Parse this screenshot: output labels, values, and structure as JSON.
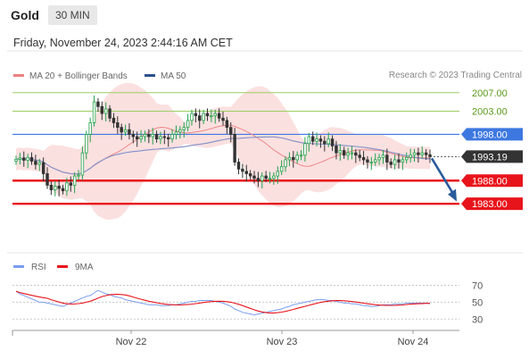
{
  "header": {
    "symbol": "Gold",
    "timeframe": "30 MIN",
    "datetime": "Friday, November 24, 2023 2:44:16 AM CET",
    "credit": "Research © 2023 Trading Central"
  },
  "colors": {
    "bollinger_fill": "#fbe0e0",
    "ma20": "#e88",
    "ma50": "#7f8fc8",
    "candle_up": "#22a24a",
    "candle_down": "#333333",
    "resistance": "#9acd62",
    "level_blue": "#3d78e0",
    "support": "#e8141b",
    "price_tag": "#333333",
    "arrow": "#2a5c9c",
    "rsi": "#7a9ef0",
    "rsi_ma": "#e8141b"
  },
  "chart_data": [
    {
      "type": "candlestick",
      "legend": [
        {
          "name": "MA 20 + Bollinger Bands",
          "color": "#f08080"
        },
        {
          "name": "MA 50",
          "color": "#2b4f8c"
        }
      ],
      "xlabels": [
        "Nov 22",
        "Nov 23",
        "Nov 24"
      ],
      "levels": [
        {
          "label": "2007.00",
          "value": 2007.0,
          "kind": "resistance"
        },
        {
          "label": "2003.00",
          "value": 2003.0,
          "kind": "resistance"
        },
        {
          "label": "1998.00",
          "value": 1998.0,
          "kind": "pivot"
        },
        {
          "label": "1993.19",
          "value": 1993.19,
          "kind": "last"
        },
        {
          "label": "1988.00",
          "value": 1988.0,
          "kind": "support"
        },
        {
          "label": "1983.00",
          "value": 1983.0,
          "kind": "support"
        }
      ],
      "ylim": [
        1973,
        2008.5
      ],
      "close": [
        1992.6,
        1992.9,
        1992.4,
        1993.0,
        1992.2,
        1991.5,
        1991.9,
        1989.5,
        1987.0,
        1986.0,
        1986.8,
        1986.3,
        1985.8,
        1987.5,
        1987.0,
        1989.0,
        1989.2,
        1994.0,
        1998.0,
        2000.5,
        2005.0,
        2004.0,
        2002.5,
        2003.5,
        2001.5,
        2000.5,
        1999.5,
        1998.5,
        1999.0,
        1998.0,
        1997.5,
        1997.0,
        1997.5,
        1998.0,
        1997.5,
        1998.0,
        1997.0,
        1997.5,
        1997.3,
        1997.0,
        1998.0,
        1998.5,
        1999.0,
        1999.5,
        2001.0,
        2002.5,
        2002.0,
        2001.0,
        2002.5,
        2002.0,
        2002.0,
        2002.5,
        2001.5,
        2001.0,
        1999.5,
        1998.0,
        1992.0,
        1990.5,
        1990.0,
        1989.5,
        1989.0,
        1988.5,
        1988.0,
        1989.0,
        1988.5,
        1988.5,
        1989.0,
        1990.0,
        1991.0,
        1992.5,
        1993.0,
        1992.5,
        1993.5,
        1993.5,
        1996.0,
        1997.5,
        1996.5,
        1997.0,
        1996.5,
        1996.0,
        1997.0,
        1995.5,
        1994.0,
        1994.5,
        1993.5,
        1994.0,
        1994.0,
        1993.5,
        1993.0,
        1992.5,
        1992.0,
        1992.0,
        1992.5,
        1993.0,
        1993.5,
        1992.0,
        1991.5,
        1992.5,
        1992.0,
        1992.5,
        1993.0,
        1993.5,
        1994.0,
        1993.6,
        1994.0,
        1993.6,
        1993.2
      ],
      "rsi": {
        "label": "RSI",
        "ma_label": "9MA",
        "levels": [
          70,
          50,
          30
        ],
        "ylim": [
          25,
          78
        ],
        "values": [
          63,
          60,
          58,
          56,
          54,
          52,
          50,
          50,
          49,
          48,
          47,
          46,
          45,
          47,
          49,
          51,
          53,
          55,
          57,
          58,
          61,
          64,
          62,
          60,
          59,
          57,
          56,
          55,
          53,
          52,
          51,
          50,
          49,
          48,
          47,
          47,
          47,
          46,
          46,
          46,
          47,
          47,
          48,
          49,
          50,
          51,
          51,
          52,
          52,
          52,
          52,
          51,
          50,
          49,
          47,
          45,
          42,
          40,
          38,
          37,
          36,
          35,
          36,
          37,
          38,
          39,
          40,
          41,
          42,
          44,
          45,
          47,
          48,
          49,
          50,
          51,
          52,
          53,
          53,
          53,
          52,
          52,
          51,
          50,
          49,
          49,
          48,
          48,
          47,
          46,
          46,
          45,
          45,
          46,
          47,
          47,
          47,
          48,
          48,
          48,
          49,
          49,
          49,
          49,
          49,
          49,
          48
        ]
      }
    }
  ]
}
